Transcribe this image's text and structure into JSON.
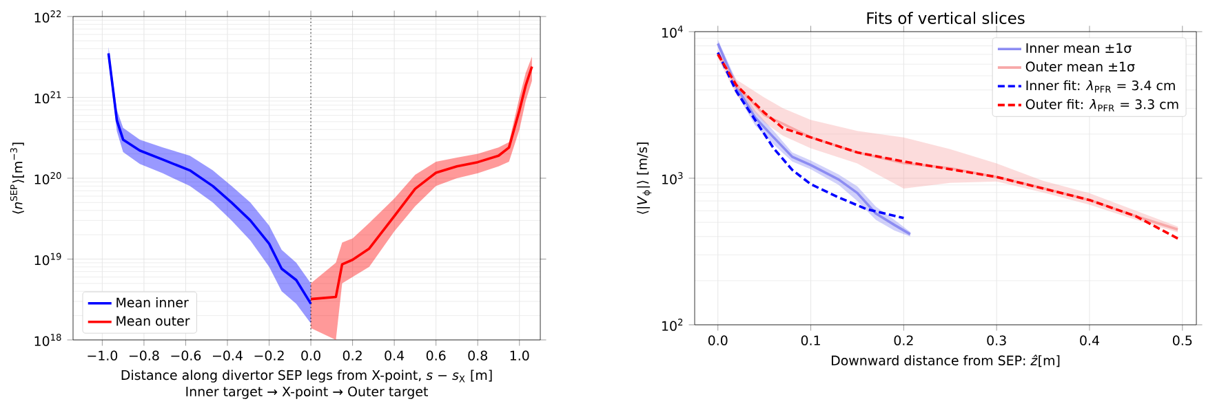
{
  "chart_data": [
    {
      "type": "line",
      "xlabel": "Distance along divertor SEP legs from X-point, *s* − *s*$_{X}$ [m]",
      "ylabel": "⟨*n*$^{SEP}$⟩[m$^{−3}$]",
      "annotations": [
        "Inner target → X-point → Outer target"
      ],
      "xlim": [
        -1.14,
        1.1
      ],
      "xticks": [
        {
          "value": -1,
          "label": "−1.0"
        },
        {
          "value": -0.8,
          "label": "−0.8"
        },
        {
          "value": -0.6,
          "label": "−0.6"
        },
        {
          "value": -0.4,
          "label": "−0.4"
        },
        {
          "value": -0.2,
          "label": "−0.2"
        },
        {
          "value": 0,
          "label": "0.0"
        },
        {
          "value": 0.2,
          "label": "0.2"
        },
        {
          "value": 0.4,
          "label": "0.4"
        },
        {
          "value": 0.6,
          "label": "0.6"
        },
        {
          "value": 0.8,
          "label": "0.8"
        },
        {
          "value": 1,
          "label": "1.0"
        }
      ],
      "ylim": [
        1e+18,
        1e+22
      ],
      "yticks": [
        {
          "value": 1e+18,
          "label": "10$^{18}$"
        },
        {
          "value": 1e+19,
          "label": "10$^{19}$"
        },
        {
          "value": 1e+20,
          "label": "10$^{20}$"
        },
        {
          "value": 1e+21,
          "label": "10$^{21}$"
        },
        {
          "value": 1e+22,
          "label": "10$^{22}$"
        }
      ],
      "log": "y",
      "grid": true,
      "legend": "bottom left",
      "ref_lines": [
        {
          "axis": "x",
          "value": 0,
          "color": "#000000",
          "line_style": "dotted"
        }
      ],
      "series": [
        {
          "name": "Mean inner",
          "color": "#0000ff",
          "line_style": "solid",
          "x": [
            -0.97,
            -0.93,
            -0.9,
            -0.82,
            -0.71,
            -0.58,
            -0.47,
            -0.38,
            -0.29,
            -0.2,
            -0.14,
            -0.07,
            0
          ],
          "values": [
            3.5e+21,
            5.2e+20,
            3e+20,
            2.2e+20,
            1.7e+20,
            1.25e+20,
            8e+19,
            5e+19,
            3e+19,
            1.55e+19,
            7.6e+18,
            5.5e+18,
            2.8e+18
          ],
          "lower": [
            2.8e+21,
            3.8e+20,
            2.1e+20,
            1.5e+20,
            1.15e+20,
            8e+19,
            5e+19,
            3e+19,
            1.7e+19,
            8e+18,
            4e+18,
            2.8e+18,
            1.6e+18
          ],
          "upper": [
            4.2e+21,
            7e+20,
            4.2e+20,
            3e+20,
            2.4e+20,
            1.9e+20,
            1.25e+20,
            8e+19,
            5e+19,
            2.6e+19,
            1.3e+19,
            9e+18,
            5e+18
          ]
        },
        {
          "name": "Mean outer",
          "color": "#ff0000",
          "line_style": "solid",
          "x": [
            0,
            0.12,
            0.15,
            0.2,
            0.28,
            0.4,
            0.5,
            0.6,
            0.7,
            0.8,
            0.9,
            0.95,
            1.0,
            1.03,
            1.06
          ],
          "values": [
            3.2e+18,
            3.4e+18,
            8.6e+18,
            9.8e+18,
            1.35e+19,
            3.4e+19,
            7.4e+19,
            1.17e+20,
            1.4e+20,
            1.58e+20,
            1.9e+20,
            2.4e+20,
            6.9e+20,
            1.4e+21,
            2.4e+21
          ],
          "lower": [
            1.4e+18,
            1e+18,
            5e+18,
            6e+18,
            8e+18,
            2.2e+19,
            4.5e+19,
            8e+19,
            1e+20,
            1.15e+20,
            1.4e+20,
            1.6e+20,
            4e+20,
            9e+20,
            1.6e+21
          ],
          "upper": [
            5e+18,
            9e+18,
            1.6e+19,
            1.8e+19,
            2.8e+19,
            5.6e+19,
            1.1e+20,
            1.6e+20,
            1.8e+20,
            2e+20,
            2.4e+20,
            2.8e+20,
            1e+21,
            2e+21,
            3.2e+21
          ]
        }
      ]
    },
    {
      "type": "line",
      "title": "Fits of vertical slices",
      "xlabel": "Downward distance from SEP: *ẑ*[m]",
      "ylabel": "⟨|*V*$_{ϕ}$|⟩ [m/s]",
      "xlim": [
        -0.025,
        0.515
      ],
      "xticks": [
        {
          "value": 0,
          "label": "0.0"
        },
        {
          "value": 0.1,
          "label": "0.1"
        },
        {
          "value": 0.2,
          "label": "0.2"
        },
        {
          "value": 0.3,
          "label": "0.3"
        },
        {
          "value": 0.4,
          "label": "0.4"
        },
        {
          "value": 0.5,
          "label": "0.5"
        }
      ],
      "ylim": [
        100,
        10000
      ],
      "yticks": [
        {
          "value": 100,
          "label": "10$^{2}$"
        },
        {
          "value": 1000,
          "label": "10$^{3}$"
        },
        {
          "value": 10000,
          "label": "10$^{4}$"
        }
      ],
      "log": "y",
      "grid": true,
      "legend": "top right",
      "series": [
        {
          "name": "Inner mean ±1σ",
          "color": "#8c8cf2",
          "line_style": "solid",
          "x": [
            0,
            0.02,
            0.04,
            0.06,
            0.08,
            0.1,
            0.13,
            0.15,
            0.17,
            0.19,
            0.207
          ],
          "values": [
            8300,
            4200,
            2600,
            1900,
            1400,
            1230,
            980,
            794,
            575,
            480,
            415
          ],
          "lower": [
            7800,
            3800,
            2300,
            1700,
            1300,
            1150,
            900,
            700,
            520,
            440,
            400
          ],
          "upper": [
            8800,
            4600,
            2900,
            2100,
            1500,
            1320,
            1060,
            880,
            640,
            520,
            430
          ]
        },
        {
          "name": "Outer mean ±1σ",
          "color": "#f7a8a8",
          "line_style": "solid",
          "x": [
            0,
            0.02,
            0.05,
            0.07,
            0.1,
            0.15,
            0.2,
            0.25,
            0.3,
            0.35,
            0.4,
            0.45,
            0.495
          ],
          "values": [
            7100,
            4300,
            2700,
            2350,
            1900,
            1500,
            1270,
            1170,
            1020,
            855,
            710,
            550,
            447
          ],
          "lower": [
            6600,
            3700,
            2400,
            1950,
            1600,
            1260,
            850,
            930,
            950,
            800,
            660,
            520,
            427
          ],
          "upper": [
            7600,
            4700,
            3550,
            3000,
            2500,
            2100,
            1900,
            1580,
            1260,
            960,
            790,
            600,
            468
          ]
        },
        {
          "name": "Inner fit: *λ*$_{PFR}$ = 3.4 cm",
          "color": "#0000ff",
          "line_style": "dashed",
          "x": [
            0,
            0.02,
            0.04,
            0.06,
            0.08,
            0.1,
            0.13,
            0.16,
            0.2
          ],
          "values": [
            7200,
            3900,
            2500,
            1600,
            1140,
            910,
            740,
            615,
            535
          ]
        },
        {
          "name": "Outer fit: *λ*$_{PFR}$ = 3.3 cm",
          "color": "#ff0000",
          "line_style": "dashed",
          "x": [
            0,
            0.02,
            0.05,
            0.07,
            0.1,
            0.15,
            0.2,
            0.3,
            0.4,
            0.45,
            0.495
          ],
          "values": [
            7000,
            4300,
            2800,
            2200,
            1900,
            1500,
            1300,
            1020,
            710,
            550,
            388
          ]
        }
      ]
    }
  ]
}
